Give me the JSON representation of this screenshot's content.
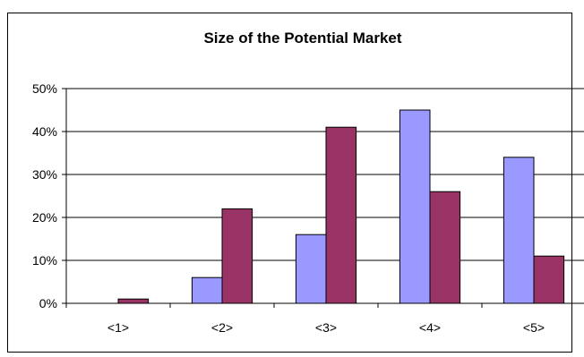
{
  "chart_data": {
    "type": "bar",
    "title": "Size of the Potential Market",
    "categories": [
      "<1>",
      "<2>",
      "<3>",
      "<4>",
      "<5>"
    ],
    "series": [
      {
        "values": [
          0,
          6,
          16,
          45,
          34
        ],
        "color": "#9999ff"
      },
      {
        "values": [
          1,
          22,
          41,
          26,
          11
        ],
        "color": "#993366"
      }
    ],
    "ylim": [
      0,
      50
    ],
    "ytick_labels": [
      "0%",
      "10%",
      "20%",
      "30%",
      "40%",
      "50%"
    ],
    "grid": true,
    "legend": "none"
  }
}
